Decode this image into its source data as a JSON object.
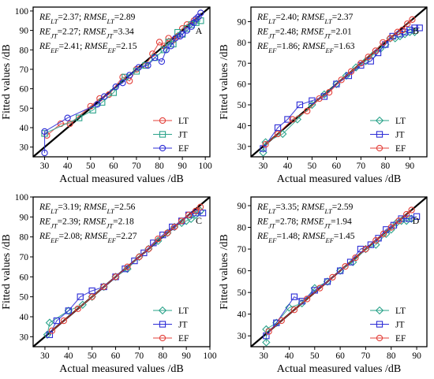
{
  "chart_data": [
    {
      "type": "scatter",
      "panel_label": "A",
      "xlabel": "Actual measured values /dB",
      "ylabel": "Fitted values /dB",
      "xlim": [
        25,
        102
      ],
      "ylim": [
        25,
        102
      ],
      "xticks": [
        30,
        40,
        50,
        60,
        70,
        80,
        90,
        100
      ],
      "yticks": [
        30,
        40,
        50,
        60,
        70,
        80,
        90,
        100
      ],
      "annotations": [
        {
          "re_sub": "LT",
          "re": "2.37",
          "rmse_sub": "LT",
          "rmse": "2.89"
        },
        {
          "re_sub": "JT",
          "re": "2.27",
          "rmse_sub": "JT",
          "rmse": "3.34"
        },
        {
          "re_sub": "EF",
          "re": "2.41",
          "rmse_sub": "EF",
          "rmse": "2.15"
        }
      ],
      "legend_position": "bottom-right",
      "series": [
        {
          "name": "LT",
          "marker": "circle",
          "color": "#e3403a",
          "x": [
            31,
            37,
            41,
            50,
            54,
            58,
            64,
            67,
            70,
            74,
            77,
            80,
            82,
            84,
            86,
            88,
            90,
            92,
            95,
            97
          ],
          "y": [
            36,
            42,
            42,
            51,
            55,
            57,
            66,
            64,
            70,
            72,
            78,
            84,
            82,
            86,
            85,
            87,
            91,
            93,
            95,
            97
          ]
        },
        {
          "name": "JT",
          "marker": "square",
          "color": "#2aa38a",
          "x": [
            30,
            45,
            51,
            55,
            60,
            65,
            70,
            74,
            78,
            82,
            84,
            86,
            88,
            90,
            92,
            94,
            96,
            98
          ],
          "y": [
            37,
            45,
            49,
            53,
            58,
            66,
            69,
            72,
            76,
            80,
            84,
            83,
            89,
            88,
            91,
            93,
            94,
            95
          ]
        },
        {
          "name": "EF",
          "marker": "circle",
          "color": "#2c2cd6",
          "x": [
            30,
            30,
            40,
            53,
            56,
            61,
            64,
            67,
            71,
            75,
            78,
            81,
            83,
            85,
            87,
            89,
            90,
            92,
            94,
            95,
            96,
            97,
            98
          ],
          "y": [
            27,
            38,
            45,
            52,
            56,
            61,
            63,
            67,
            71,
            72,
            76,
            74,
            80,
            82,
            86,
            87,
            88,
            90,
            92,
            94,
            96,
            97,
            99
          ]
        }
      ]
    },
    {
      "type": "scatter",
      "panel_label": "B",
      "xlabel": "Actual measured values /dB",
      "ylabel": "Fitted values /dB",
      "xlim": [
        25,
        97
      ],
      "ylim": [
        25,
        97
      ],
      "xticks": [
        30,
        40,
        50,
        60,
        70,
        80,
        90
      ],
      "yticks": [
        30,
        40,
        50,
        60,
        70,
        80,
        90
      ],
      "annotations": [
        {
          "re_sub": "LT",
          "re": "2.40",
          "rmse_sub": "LT",
          "rmse": "2.37"
        },
        {
          "re_sub": "JT",
          "re": "2.48",
          "rmse_sub": "JT",
          "rmse": "2.01"
        },
        {
          "re_sub": "EF",
          "re": "1.86",
          "rmse_sub": "EF",
          "rmse": "1.63"
        }
      ],
      "legend_position": "bottom-right",
      "series": [
        {
          "name": "LT",
          "marker": "diamond",
          "color": "#2aa38a",
          "x": [
            30,
            31,
            38,
            44,
            50,
            55,
            60,
            64,
            68,
            72,
            75,
            78,
            80,
            82,
            84,
            86,
            88,
            90,
            92
          ],
          "y": [
            27,
            32,
            36,
            43,
            50,
            55,
            60,
            64,
            68,
            71,
            74,
            77,
            79,
            82,
            82,
            83,
            84,
            85,
            85
          ]
        },
        {
          "name": "JT",
          "marker": "square",
          "color": "#2c2cd6",
          "x": [
            30,
            36,
            40,
            45,
            50,
            55,
            60,
            65,
            70,
            74,
            77,
            80,
            83,
            86,
            88,
            90,
            92,
            94
          ],
          "y": [
            29,
            39,
            43,
            50,
            52,
            54,
            60,
            64,
            69,
            71,
            75,
            79,
            83,
            84,
            85,
            86,
            87,
            87
          ]
        },
        {
          "name": "EF",
          "marker": "circle",
          "color": "#e3403a",
          "x": [
            31,
            36,
            42,
            48,
            53,
            57,
            62,
            66,
            70,
            73,
            76,
            79,
            82,
            85,
            87,
            89,
            91
          ],
          "y": [
            31,
            36,
            43,
            47,
            53,
            56,
            62,
            66,
            70,
            73,
            76,
            80,
            82,
            85,
            86,
            89,
            91
          ]
        }
      ]
    },
    {
      "type": "scatter",
      "panel_label": "C",
      "xlabel": "Actual measured values /dB",
      "ylabel": "Fitted values /dB",
      "xlim": [
        25,
        100
      ],
      "ylim": [
        25,
        100
      ],
      "xticks": [
        30,
        40,
        50,
        60,
        70,
        80,
        90,
        100
      ],
      "yticks": [
        30,
        40,
        50,
        60,
        70,
        80,
        90,
        100
      ],
      "annotations": [
        {
          "re_sub": "LT",
          "re": "3.19",
          "rmse_sub": "LT",
          "rmse": "2.56"
        },
        {
          "re_sub": "JT",
          "re": "2.39",
          "rmse_sub": "JT",
          "rmse": "2.18"
        },
        {
          "re_sub": "EF",
          "re": "2.08",
          "rmse_sub": "EF",
          "rmse": "2.27"
        }
      ],
      "legend_position": "bottom-right",
      "series": [
        {
          "name": "LT",
          "marker": "diamond",
          "color": "#2aa38a",
          "x": [
            31,
            32,
            40,
            46,
            50,
            55,
            60,
            65,
            70,
            74,
            78,
            82,
            85,
            88,
            90,
            92,
            94,
            96
          ],
          "y": [
            31,
            37,
            43,
            46,
            50,
            55,
            60,
            64,
            70,
            74,
            78,
            82,
            85,
            87,
            88,
            89,
            91,
            93
          ]
        },
        {
          "name": "JT",
          "marker": "square",
          "color": "#2c2cd6",
          "x": [
            32,
            35,
            40,
            45,
            50,
            55,
            60,
            64,
            68,
            72,
            76,
            80,
            84,
            88,
            91,
            94,
            97
          ],
          "y": [
            31,
            38,
            43,
            50,
            53,
            55,
            60,
            64,
            68,
            72,
            77,
            81,
            85,
            88,
            91,
            92,
            92
          ]
        },
        {
          "name": "EF",
          "marker": "circle",
          "color": "#e3403a",
          "x": [
            33,
            38,
            44,
            50,
            55,
            60,
            65,
            70,
            74,
            78,
            82,
            85,
            88,
            91,
            94,
            96
          ],
          "y": [
            33,
            38,
            44,
            50,
            55,
            60,
            65,
            70,
            74,
            79,
            82,
            85,
            88,
            91,
            93,
            95
          ]
        }
      ]
    },
    {
      "type": "scatter",
      "panel_label": "D",
      "xlabel": "Actual measured values /dB",
      "ylabel": "Fitted values /dB",
      "xlim": [
        25,
        94
      ],
      "ylim": [
        25,
        94
      ],
      "xticks": [
        30,
        40,
        50,
        60,
        70,
        80,
        90
      ],
      "yticks": [
        30,
        40,
        50,
        60,
        70,
        80,
        90
      ],
      "annotations": [
        {
          "re_sub": "LT",
          "re": "3.35",
          "rmse_sub": "LT",
          "rmse": "2.59"
        },
        {
          "re_sub": "JT",
          "re": "2.78",
          "rmse_sub": "JT",
          "rmse": "1.94"
        },
        {
          "re_sub": "EF",
          "re": "1.48",
          "rmse_sub": "EF",
          "rmse": "1.45"
        }
      ],
      "legend_position": "bottom-right",
      "series": [
        {
          "name": "LT",
          "marker": "diamond",
          "color": "#2aa38a",
          "x": [
            31,
            31,
            35,
            40,
            45,
            50,
            55,
            60,
            65,
            70,
            74,
            78,
            80,
            82,
            84,
            86,
            88
          ],
          "y": [
            27,
            33,
            36,
            43,
            45,
            52,
            55,
            60,
            64,
            70,
            72,
            77,
            79,
            82,
            83,
            83,
            84
          ]
        },
        {
          "name": "JT",
          "marker": "square",
          "color": "#2c2cd6",
          "x": [
            31,
            35,
            42,
            45,
            50,
            55,
            60,
            64,
            68,
            72,
            75,
            78,
            81,
            84,
            87,
            90
          ],
          "y": [
            30,
            36,
            48,
            46,
            51,
            55,
            60,
            64,
            70,
            72,
            75,
            79,
            81,
            84,
            84,
            85
          ]
        },
        {
          "name": "EF",
          "marker": "circle",
          "color": "#e3403a",
          "x": [
            32,
            37,
            42,
            47,
            52,
            57,
            62,
            66,
            70,
            74,
            77,
            80,
            83,
            86,
            88
          ],
          "y": [
            32,
            37,
            42,
            47,
            52,
            57,
            62,
            66,
            70,
            74,
            77,
            80,
            83,
            86,
            88
          ]
        }
      ]
    }
  ]
}
